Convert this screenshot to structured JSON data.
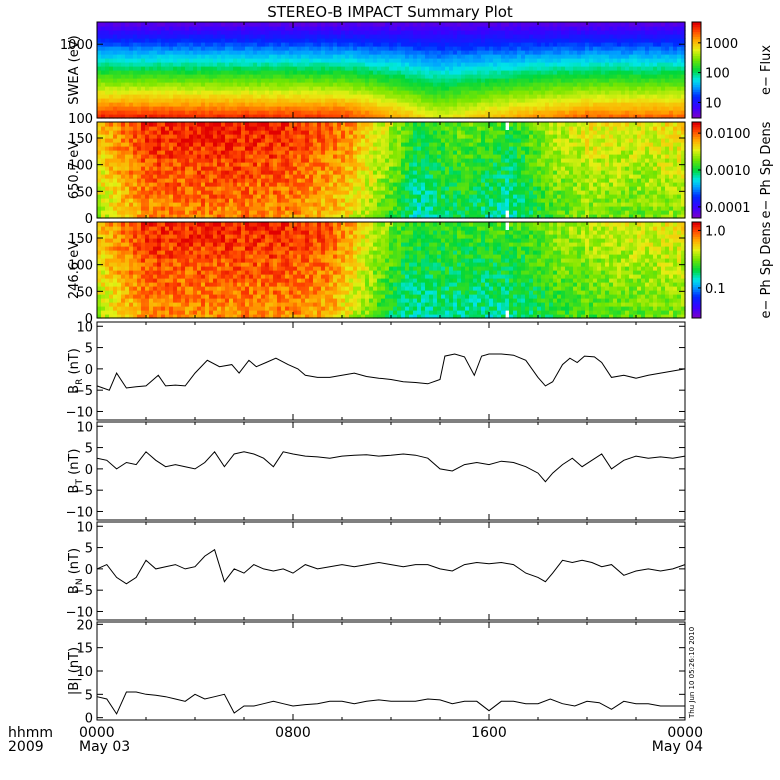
{
  "title": "STEREO-B IMPACT Summary Plot",
  "footer": {
    "xlabel": "hhmm",
    "year": "2009",
    "stamp": "Thu Jun 10 05:26:10 2010"
  },
  "x_ticks": [
    {
      "t": 0,
      "label": "0000",
      "sublabel": "May 03"
    },
    {
      "t": 8,
      "label": "0800",
      "sublabel": ""
    },
    {
      "t": 16,
      "label": "1600",
      "sublabel": ""
    },
    {
      "t": 24,
      "label": "0000",
      "sublabel": "May 04"
    }
  ],
  "colors": {
    "spectrogram_scale": "rainbow (violet-blue-cyan-green-yellow-red)",
    "lines": "#000000"
  },
  "chart_data": [
    {
      "type": "heatmap",
      "id": "swea",
      "ylabel": "SWEA (eV)",
      "yscale": "log",
      "ylim": [
        100,
        2000
      ],
      "yticks": [
        {
          "v": 100,
          "label": "100"
        },
        {
          "v": 1000,
          "label": "1000"
        }
      ],
      "xlim": [
        0,
        24
      ],
      "colorbar": {
        "label": "e− Flux",
        "scale": "log",
        "range": [
          3,
          5000
        ],
        "ticks": [
          {
            "v": 10,
            "label": "10"
          },
          {
            "v": 100,
            "label": "100"
          },
          {
            "v": 1000,
            "label": "1000"
          }
        ]
      },
      "description_points": [
        {
          "t": 0,
          "low_energy_level": 0.98
        },
        {
          "t": 10,
          "low_energy_level": 0.95
        },
        {
          "t": 12.5,
          "low_energy_level": 0.82
        },
        {
          "t": 14,
          "low_energy_level": 0.72
        },
        {
          "t": 16,
          "low_energy_level": 0.8
        },
        {
          "t": 20,
          "low_energy_level": 0.9
        },
        {
          "t": 24,
          "low_energy_level": 0.9
        }
      ]
    },
    {
      "type": "heatmap",
      "id": "pad650",
      "ylabel": "650.7 eV",
      "ylim": [
        0,
        180
      ],
      "yticks": [
        {
          "v": 0,
          "label": "0"
        },
        {
          "v": 50,
          "label": "50"
        },
        {
          "v": 100,
          "label": "100"
        },
        {
          "v": 150,
          "label": "150"
        }
      ],
      "xlim": [
        0,
        24
      ],
      "colorbar": {
        "label": "e− Ph Sp Dens",
        "scale": "log",
        "range": [
          5e-05,
          0.02
        ],
        "ticks": [
          {
            "v": 0.0001,
            "label": "0.0001"
          },
          {
            "v": 0.001,
            "label": "0.0010"
          },
          {
            "v": 0.01,
            "label": "0.0100"
          }
        ]
      },
      "level_points": [
        {
          "t": 0,
          "v": 0.72
        },
        {
          "t": 1,
          "v": 0.82
        },
        {
          "t": 2,
          "v": 0.9
        },
        {
          "t": 5,
          "v": 0.92
        },
        {
          "t": 8,
          "v": 0.9
        },
        {
          "t": 10,
          "v": 0.82
        },
        {
          "t": 12,
          "v": 0.62
        },
        {
          "t": 13,
          "v": 0.48
        },
        {
          "t": 15,
          "v": 0.55
        },
        {
          "t": 17,
          "v": 0.48
        },
        {
          "t": 18.5,
          "v": 0.62
        },
        {
          "t": 20,
          "v": 0.68
        },
        {
          "t": 22,
          "v": 0.66
        },
        {
          "t": 24,
          "v": 0.7
        }
      ],
      "gaps": [
        {
          "t0": 16.6,
          "t1": 16.85
        }
      ]
    },
    {
      "type": "heatmap",
      "id": "pad246",
      "ylabel": "246.6 eV",
      "ylim": [
        0,
        180
      ],
      "yticks": [
        {
          "v": 0,
          "label": "0"
        },
        {
          "v": 50,
          "label": "50"
        },
        {
          "v": 100,
          "label": "100"
        },
        {
          "v": 150,
          "label": "150"
        }
      ],
      "xlim": [
        0,
        24
      ],
      "colorbar": {
        "label": "e− Ph Sp Dens",
        "scale": "log",
        "range": [
          0.03,
          1.4
        ],
        "ticks": [
          {
            "v": 0.1,
            "label": "0.1"
          },
          {
            "v": 1.0,
            "label": "1.0"
          }
        ]
      },
      "level_points": [
        {
          "t": 0,
          "v": 0.72
        },
        {
          "t": 1,
          "v": 0.82
        },
        {
          "t": 2,
          "v": 0.9
        },
        {
          "t": 5,
          "v": 0.9
        },
        {
          "t": 8,
          "v": 0.9
        },
        {
          "t": 9.5,
          "v": 0.86
        },
        {
          "t": 11,
          "v": 0.68
        },
        {
          "t": 12.5,
          "v": 0.5
        },
        {
          "t": 14,
          "v": 0.5
        },
        {
          "t": 16,
          "v": 0.5
        },
        {
          "t": 17.5,
          "v": 0.52
        },
        {
          "t": 19,
          "v": 0.6
        },
        {
          "t": 21,
          "v": 0.64
        },
        {
          "t": 24,
          "v": 0.68
        }
      ],
      "gaps": [
        {
          "t0": 16.6,
          "t1": 16.85
        }
      ]
    },
    {
      "type": "line",
      "id": "br",
      "ylabel_main": "B",
      "ylabel_sub": "R",
      "ylabel_unit": " (nT)",
      "ylim": [
        -12,
        11
      ],
      "yticks": [
        {
          "v": -10,
          "label": "−10"
        },
        {
          "v": -5,
          "label": "−5"
        },
        {
          "v": 0,
          "label": "0"
        },
        {
          "v": 5,
          "label": "5"
        },
        {
          "v": 10,
          "label": "10"
        }
      ],
      "xlim": [
        0,
        24
      ],
      "x": [
        0,
        0.5,
        0.8,
        1.2,
        1.6,
        2,
        2.5,
        2.8,
        3.2,
        3.6,
        4,
        4.5,
        5,
        5.5,
        5.8,
        6.2,
        6.5,
        6.9,
        7.3,
        7.8,
        8.2,
        8.5,
        9,
        9.5,
        10,
        10.5,
        11,
        11.5,
        12,
        12.5,
        13,
        13.5,
        14,
        14.2,
        14.6,
        15,
        15.4,
        15.7,
        16,
        16.5,
        17,
        17.5,
        18,
        18.3,
        18.6,
        19,
        19.3,
        19.6,
        19.9,
        20.3,
        20.6,
        21,
        21.5,
        22,
        22.5,
        23,
        23.5,
        24
      ],
      "y": [
        -4,
        -5,
        -1,
        -4.5,
        -4.2,
        -4,
        -1.5,
        -4,
        -3.8,
        -4,
        -1,
        2,
        0.5,
        1,
        -1,
        2,
        0.5,
        1.5,
        2.5,
        1,
        0,
        -1.5,
        -2,
        -2,
        -1.5,
        -1,
        -1.8,
        -2.2,
        -2.5,
        -3,
        -3.2,
        -3.5,
        -2.5,
        3,
        3.5,
        2.8,
        -1.5,
        3,
        3.5,
        3.5,
        3.2,
        2,
        -2,
        -4,
        -3,
        1,
        2.5,
        1.5,
        3,
        2.8,
        1.5,
        -2,
        -1.5,
        -2.2,
        -1.5,
        -1,
        -0.5,
        0
      ]
    },
    {
      "type": "line",
      "id": "bt",
      "ylabel_main": "B",
      "ylabel_sub": "T",
      "ylabel_unit": " (nT)",
      "ylim": [
        -12,
        11
      ],
      "yticks": [
        {
          "v": -10,
          "label": "−10"
        },
        {
          "v": -5,
          "label": "−5"
        },
        {
          "v": 0,
          "label": "0"
        },
        {
          "v": 5,
          "label": "5"
        },
        {
          "v": 10,
          "label": "10"
        }
      ],
      "xlim": [
        0,
        24
      ],
      "x": [
        0,
        0.4,
        0.8,
        1.2,
        1.6,
        2,
        2.4,
        2.8,
        3.2,
        3.6,
        4,
        4.4,
        4.8,
        5.2,
        5.6,
        6,
        6.4,
        6.8,
        7.2,
        7.6,
        8,
        8.5,
        9,
        9.5,
        10,
        10.5,
        11,
        11.5,
        12,
        12.5,
        13,
        13.5,
        14,
        14.5,
        15,
        15.5,
        16,
        16.5,
        17,
        17.5,
        18,
        18.3,
        18.6,
        19,
        19.4,
        19.8,
        20.2,
        20.6,
        21,
        21.5,
        22,
        22.5,
        23,
        23.5,
        24
      ],
      "y": [
        2.5,
        2,
        0,
        1.5,
        1,
        4,
        2,
        0.5,
        1,
        0.5,
        0,
        1.5,
        4,
        0.5,
        3.5,
        4,
        3.5,
        2.5,
        0.5,
        4,
        3.5,
        3,
        2.8,
        2.5,
        3,
        3.2,
        3.3,
        3,
        3.2,
        3.5,
        3.2,
        2.5,
        0,
        -0.5,
        1,
        1.5,
        1,
        1.8,
        1.5,
        0.5,
        -1,
        -3,
        -1,
        1,
        2.5,
        0.5,
        2,
        3.5,
        0,
        2,
        3,
        2.5,
        2.8,
        2.5,
        3
      ]
    },
    {
      "type": "line",
      "id": "bn",
      "ylabel_main": "B",
      "ylabel_sub": "N",
      "ylabel_unit": " (nT)",
      "ylim": [
        -12,
        11
      ],
      "yticks": [
        {
          "v": -10,
          "label": "−10"
        },
        {
          "v": -5,
          "label": "−5"
        },
        {
          "v": 0,
          "label": "0"
        },
        {
          "v": 5,
          "label": "5"
        },
        {
          "v": 10,
          "label": "10"
        }
      ],
      "xlim": [
        0,
        24
      ],
      "x": [
        0,
        0.4,
        0.8,
        1.2,
        1.6,
        2,
        2.4,
        2.8,
        3.2,
        3.6,
        4,
        4.4,
        4.8,
        5.2,
        5.6,
        6,
        6.4,
        6.8,
        7.2,
        7.6,
        8,
        8.5,
        9,
        9.5,
        10,
        10.5,
        11,
        11.5,
        12,
        12.5,
        13,
        13.5,
        14,
        14.5,
        15,
        15.5,
        16,
        16.5,
        17,
        17.5,
        18,
        18.3,
        18.6,
        19,
        19.4,
        19.8,
        20.2,
        20.6,
        21,
        21.5,
        22,
        22.5,
        23,
        23.5,
        24
      ],
      "y": [
        0,
        1,
        -2,
        -3.5,
        -2,
        2,
        0,
        0.5,
        1,
        0,
        0.5,
        3,
        4.5,
        -3,
        0,
        -1,
        1,
        0,
        -0.5,
        0,
        -1,
        1,
        0,
        0.5,
        1,
        0.5,
        1,
        1.5,
        1,
        0.5,
        1,
        1,
        0,
        -0.5,
        1,
        1.5,
        1.2,
        1.5,
        1,
        -1,
        -2,
        -3,
        -1,
        2,
        1.5,
        2,
        1.5,
        0.5,
        1,
        -1.5,
        -0.5,
        0,
        -0.5,
        0,
        1
      ]
    },
    {
      "type": "line",
      "id": "bmag",
      "ylabel_main": "|B| (nT)",
      "ylabel_sub": "",
      "ylabel_unit": "",
      "ylim": [
        -0.5,
        20.5
      ],
      "yticks": [
        {
          "v": 0,
          "label": "0"
        },
        {
          "v": 5,
          "label": "5"
        },
        {
          "v": 10,
          "label": "10"
        },
        {
          "v": 15,
          "label": "15"
        },
        {
          "v": 20,
          "label": "20"
        }
      ],
      "xlim": [
        0,
        24
      ],
      "x": [
        0,
        0.4,
        0.8,
        1.2,
        1.6,
        2,
        2.4,
        2.8,
        3.2,
        3.6,
        4,
        4.4,
        4.8,
        5.2,
        5.6,
        6,
        6.4,
        6.8,
        7.2,
        7.6,
        8,
        8.5,
        9,
        9.5,
        10,
        10.5,
        11,
        11.5,
        12,
        12.5,
        13,
        13.5,
        14,
        14.5,
        15,
        15.5,
        16,
        16.5,
        17,
        17.5,
        18,
        18.5,
        19,
        19.5,
        20,
        20.5,
        21,
        21.5,
        22,
        22.5,
        23,
        23.5,
        24
      ],
      "y": [
        4.5,
        4,
        0.8,
        5.5,
        5.5,
        5,
        4.8,
        4.5,
        4,
        3.5,
        5,
        4,
        4.5,
        5,
        1,
        2.5,
        2.5,
        3,
        3.5,
        3,
        2.5,
        2.8,
        3,
        3.5,
        3.5,
        3,
        3.5,
        3.8,
        3.5,
        3.5,
        3.5,
        4,
        3.8,
        3,
        3.5,
        3.5,
        1.5,
        3.5,
        3.5,
        3,
        3,
        4,
        3,
        2.5,
        3.5,
        3.2,
        1.8,
        3.5,
        3,
        3,
        2.5,
        2.5,
        2.5
      ]
    }
  ]
}
